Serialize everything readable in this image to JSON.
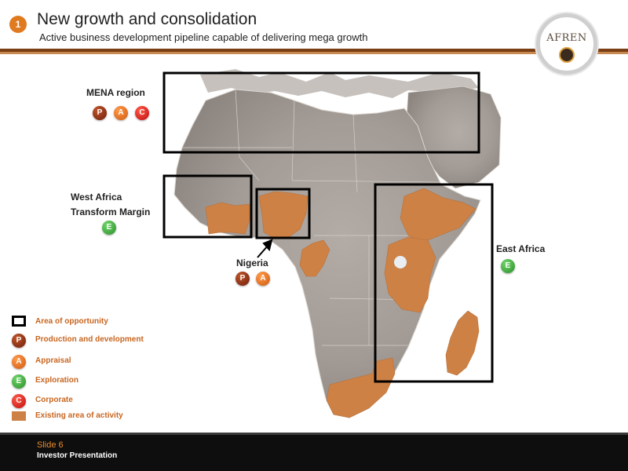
{
  "header": {
    "number": "1",
    "title": "New growth and consolidation",
    "subtitle": "Active business development pipeline capable of delivering mega growth",
    "logo_text": "AFREN"
  },
  "regions": {
    "mena": {
      "label": "MENA region",
      "badges": [
        "P",
        "A",
        "C"
      ]
    },
    "west_africa": {
      "label_line1": "West Africa",
      "label_line2": "Transform Margin",
      "badges": [
        "E"
      ]
    },
    "nigeria": {
      "label": "Nigeria",
      "badges": [
        "P",
        "A"
      ]
    },
    "east_africa": {
      "label": "East Africa",
      "badges": [
        "E"
      ]
    }
  },
  "legend": {
    "area_of_opportunity": "Area of opportunity",
    "production": {
      "symbol": "P",
      "label": "Production and development"
    },
    "appraisal": {
      "symbol": "A",
      "label": "Appraisal"
    },
    "exploration": {
      "symbol": "E",
      "label": "Exploration"
    },
    "corporate": {
      "symbol": "C",
      "label": "Corporate"
    },
    "existing_activity": "Existing area of activity"
  },
  "footer": {
    "slide": "Slide 6",
    "label": "Investor Presentation"
  },
  "colors": {
    "accent_orange": "#e07a1f",
    "activity_fill": "#cd8145",
    "header_rule": "#7a3e14",
    "production": "#8b2d12",
    "appraisal": "#f07a2a",
    "exploration": "#3aaa35",
    "corporate": "#e21b1b"
  }
}
